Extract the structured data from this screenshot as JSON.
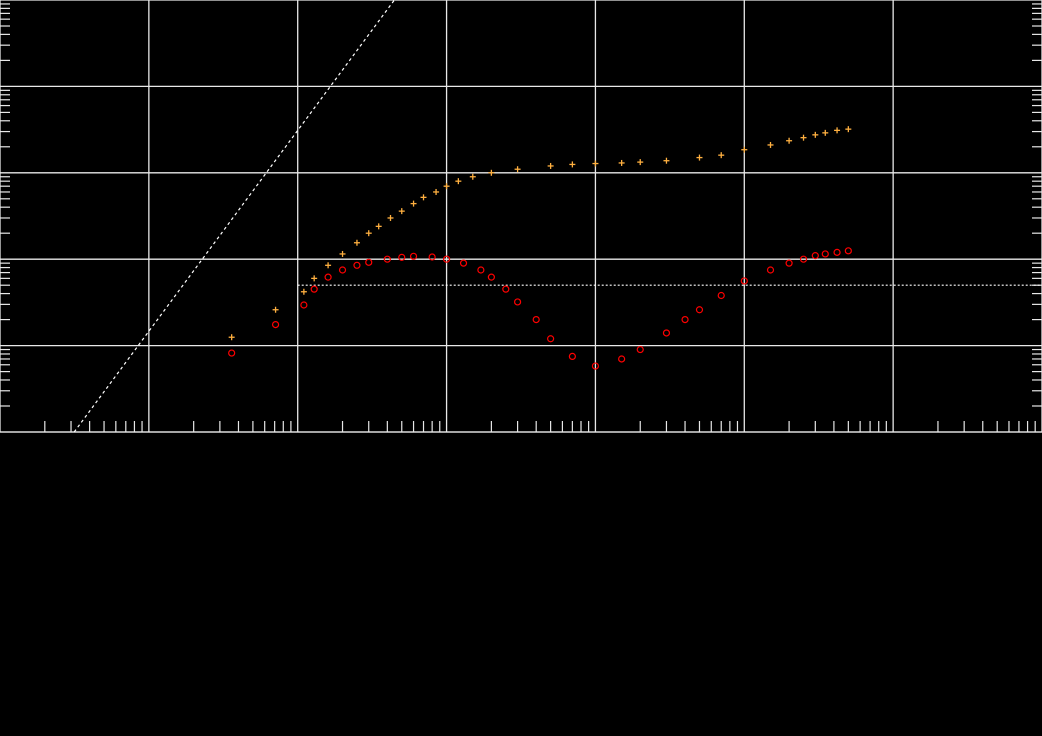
{
  "chart_data": {
    "type": "scatter",
    "x_scale": "log",
    "y_scale": "log",
    "xlim": [
      0.0001,
      1000
    ],
    "ylim": [
      0.001,
      100
    ],
    "grid": true,
    "title": "",
    "xlabel": "",
    "ylabel": "",
    "colors": {
      "background": "#000000",
      "grid": "#e8e8e8",
      "reference_line": "#ffffff",
      "series_plus": "#ffb040",
      "series_circle": "#ff0000"
    },
    "reference_lines": [
      {
        "kind": "diagonal",
        "style": "dashed",
        "points": [
          [
            0.000315,
            0.001
          ],
          [
            0.0446,
            100
          ]
        ]
      },
      {
        "kind": "horizontal",
        "style": "dashed",
        "y": 0.05,
        "x_from": 0.01,
        "x_to": 1000
      }
    ],
    "series": [
      {
        "marker": "plus",
        "points": [
          [
            0.0036,
            0.0125
          ],
          [
            0.0071,
            0.026
          ],
          [
            0.011,
            0.042
          ],
          [
            0.0129,
            0.06
          ],
          [
            0.016,
            0.085
          ],
          [
            0.02,
            0.115
          ],
          [
            0.025,
            0.155
          ],
          [
            0.03,
            0.2
          ],
          [
            0.035,
            0.24
          ],
          [
            0.042,
            0.3
          ],
          [
            0.05,
            0.36
          ],
          [
            0.06,
            0.44
          ],
          [
            0.07,
            0.52
          ],
          [
            0.085,
            0.6
          ],
          [
            0.1,
            0.7
          ],
          [
            0.12,
            0.8
          ],
          [
            0.15,
            0.9
          ],
          [
            0.2,
            1.0
          ],
          [
            0.3,
            1.1
          ],
          [
            0.5,
            1.2
          ],
          [
            0.7,
            1.25
          ],
          [
            1,
            1.28
          ],
          [
            1.5,
            1.3
          ],
          [
            2,
            1.33
          ],
          [
            3,
            1.38
          ],
          [
            5,
            1.5
          ],
          [
            7,
            1.6
          ],
          [
            10,
            1.85
          ],
          [
            15,
            2.1
          ],
          [
            20,
            2.35
          ],
          [
            25,
            2.55
          ],
          [
            30,
            2.75
          ],
          [
            35,
            2.9
          ],
          [
            42,
            3.1
          ],
          [
            50,
            3.2
          ]
        ]
      },
      {
        "marker": "circle",
        "points": [
          [
            0.0036,
            0.0082
          ],
          [
            0.0071,
            0.0175
          ],
          [
            0.011,
            0.0295
          ],
          [
            0.0129,
            0.045
          ],
          [
            0.016,
            0.062
          ],
          [
            0.02,
            0.075
          ],
          [
            0.025,
            0.085
          ],
          [
            0.03,
            0.092
          ],
          [
            0.04,
            0.1
          ],
          [
            0.05,
            0.105
          ],
          [
            0.06,
            0.108
          ],
          [
            0.08,
            0.106
          ],
          [
            0.1,
            0.1
          ],
          [
            0.13,
            0.09
          ],
          [
            0.17,
            0.075
          ],
          [
            0.2,
            0.062
          ],
          [
            0.25,
            0.045
          ],
          [
            0.3,
            0.032
          ],
          [
            0.4,
            0.02
          ],
          [
            0.5,
            0.012
          ],
          [
            0.7,
            0.0075
          ],
          [
            1,
            0.0058
          ],
          [
            1.5,
            0.007
          ],
          [
            2,
            0.009
          ],
          [
            3,
            0.014
          ],
          [
            4,
            0.02
          ],
          [
            5,
            0.026
          ],
          [
            7,
            0.038
          ],
          [
            10,
            0.056
          ],
          [
            15,
            0.075
          ],
          [
            20,
            0.09
          ],
          [
            25,
            0.1
          ],
          [
            30,
            0.11
          ],
          [
            35,
            0.115
          ],
          [
            42,
            0.12
          ],
          [
            50,
            0.125
          ]
        ]
      }
    ]
  }
}
